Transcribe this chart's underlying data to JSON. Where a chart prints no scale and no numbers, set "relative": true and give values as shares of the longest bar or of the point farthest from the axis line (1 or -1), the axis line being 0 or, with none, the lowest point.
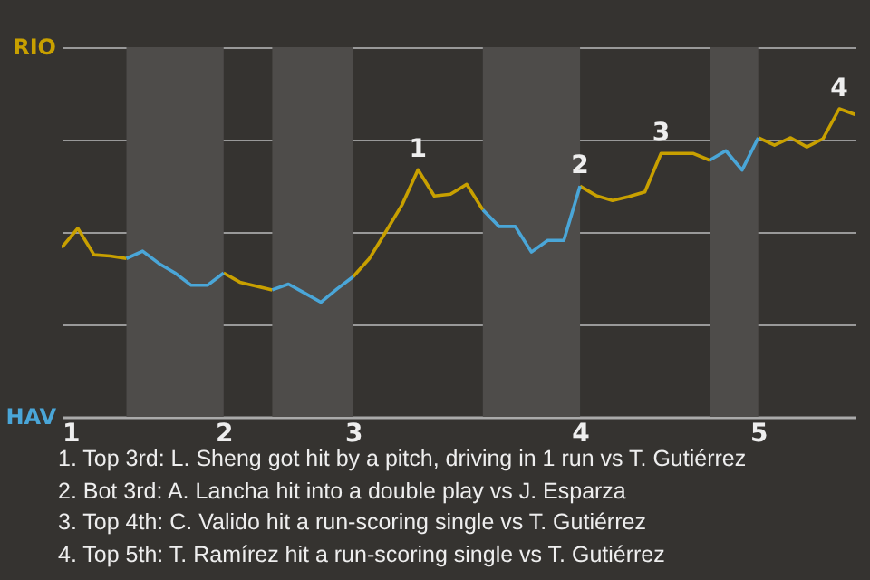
{
  "chart_data": {
    "type": "line",
    "categories": [
      "1",
      null,
      null,
      null,
      null,
      null,
      null,
      null,
      null,
      null,
      "2",
      null,
      null,
      null,
      null,
      null,
      null,
      null,
      "3",
      null,
      null,
      null,
      null,
      null,
      null,
      null,
      null,
      null,
      null,
      null,
      null,
      null,
      "4",
      null,
      null,
      null,
      null,
      null,
      null,
      null,
      null,
      null,
      null,
      "5",
      null,
      null,
      null,
      null,
      null,
      null
    ],
    "relative": true,
    "series": [
      {
        "name": "RIO",
        "color": "#c8a000",
        "values": [
          0.549,
          0.612,
          0.526,
          0.522,
          0.514,
          null,
          null,
          null,
          null,
          null,
          0.467,
          0.437,
          0.424,
          0.412,
          null,
          null,
          null,
          null,
          0.455,
          0.514,
          0.6,
          0.687,
          0.802,
          0.717,
          0.723,
          0.755,
          0.672,
          null,
          null,
          null,
          null,
          null,
          0.749,
          0.718,
          0.702,
          0.715,
          0.73,
          0.855,
          0.855,
          0.855,
          0.833,
          null,
          null,
          0.906,
          0.882,
          0.906,
          0.876,
          0.903,
          1,
          0.981
        ]
      },
      {
        "name": "HAV",
        "color": "#4aa6d8",
        "values": [
          null,
          null,
          null,
          null,
          0.514,
          0.538,
          0.498,
          0.467,
          0.427,
          0.427,
          0.467,
          null,
          null,
          0.412,
          0.431,
          0.402,
          0.372,
          0.415,
          0.455,
          null,
          null,
          null,
          null,
          null,
          null,
          null,
          0.672,
          0.618,
          0.618,
          0.535,
          0.573,
          0.573,
          0.749,
          null,
          null,
          null,
          null,
          null,
          null,
          null,
          0.833,
          0.864,
          0.801,
          0.906,
          null,
          null,
          null,
          null,
          null,
          null
        ]
      }
    ],
    "grid": "y",
    "annotations": [
      {
        "text": "1",
        "y": 0.802
      },
      {
        "text": "2",
        "y": 0.749
      },
      {
        "text": "3",
        "y": 0.855
      },
      {
        "text": "4",
        "y": 1
      },
      "1. Top 3rd: L. Sheng got hit by a pitch, driving in 1 run vs T. Gutiérrez",
      "2. Bot 3rd: A. Lancha hit into a double play vs J. Esparza",
      "3. Top 4th: C. Valido hit a run-scoring single vs T. Gutiérrez",
      "4. Top 5th: T. Ramírez hit a run-scoring single vs T. Gutiérrez"
    ]
  }
}
